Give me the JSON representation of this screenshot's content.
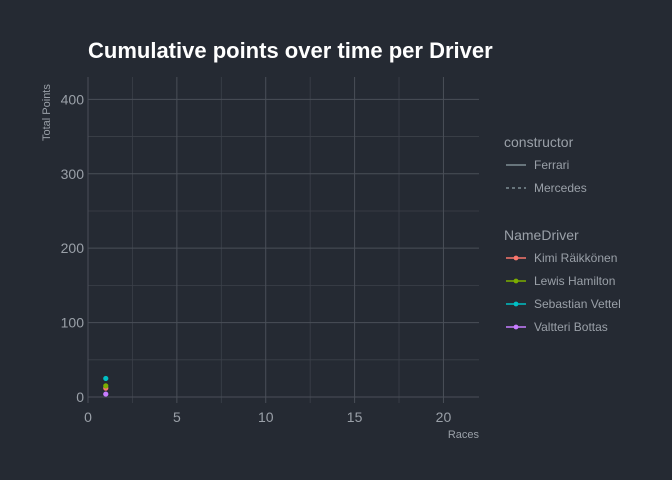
{
  "chart_data": {
    "type": "line",
    "title": "Cumulative points over time per Driver",
    "xlabel": "Races",
    "ylabel": "Total Points",
    "xlim": [
      0,
      22
    ],
    "ylim": [
      -8,
      430
    ],
    "x_ticks": [
      0,
      5,
      10,
      15,
      20
    ],
    "y_ticks": [
      0,
      100,
      200,
      300,
      400
    ],
    "grid": true,
    "legend_position": "right",
    "legends": [
      {
        "title": "constructor",
        "entries": [
          {
            "label": "Ferrari",
            "linetype": "solid"
          },
          {
            "label": "Mercedes",
            "linetype": "dashed"
          }
        ]
      },
      {
        "title": "NameDriver",
        "entries": [
          {
            "label": "Kimi Räikkönen",
            "color": "#f8766d"
          },
          {
            "label": "Lewis Hamilton",
            "color": "#7cae00"
          },
          {
            "label": "Sebastian Vettel",
            "color": "#00bfc4"
          },
          {
            "label": "Valtteri Bottas",
            "color": "#c77cff"
          }
        ]
      }
    ],
    "series": [
      {
        "name": "Kimi Räikkönen",
        "constructor": "Ferrari",
        "color": "#f8766d",
        "x": [
          1
        ],
        "y": [
          12
        ]
      },
      {
        "name": "Lewis Hamilton",
        "constructor": "Mercedes",
        "color": "#7cae00",
        "x": [
          1
        ],
        "y": [
          15
        ]
      },
      {
        "name": "Sebastian Vettel",
        "constructor": "Ferrari",
        "color": "#00bfc4",
        "x": [
          1
        ],
        "y": [
          25
        ]
      },
      {
        "name": "Valtteri Bottas",
        "constructor": "Mercedes",
        "color": "#c77cff",
        "x": [
          1
        ],
        "y": [
          4
        ]
      }
    ]
  }
}
